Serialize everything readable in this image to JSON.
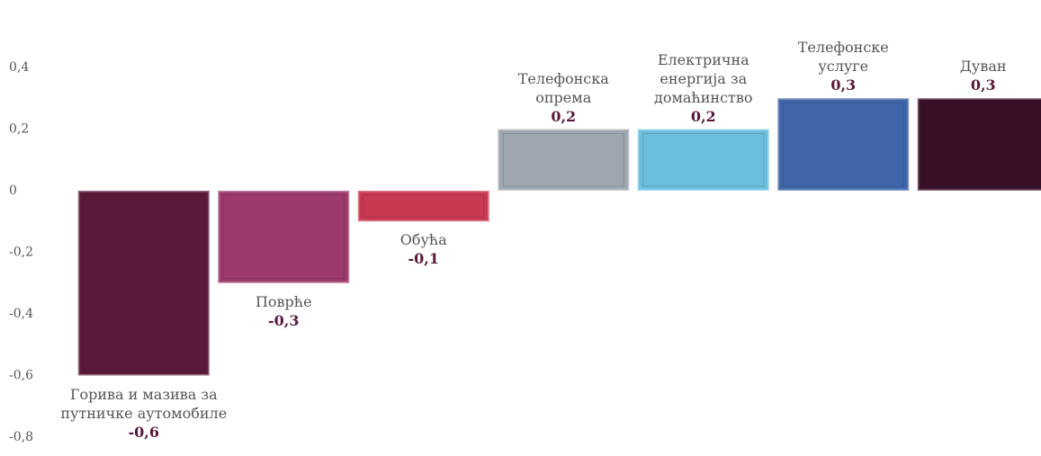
{
  "chart_data": {
    "type": "bar",
    "categories": [
      "Горива и мазива за путничке аутомобиле",
      "Поврће",
      "Обућа",
      "Телефонска опрема",
      "Електрична енергија за домаћинство",
      "Телефонске услуге",
      "Дуван"
    ],
    "values": [
      -0.6,
      -0.3,
      -0.1,
      0.2,
      0.2,
      0.3,
      0.3
    ],
    "value_labels": [
      "-0,6",
      "-0,3",
      "-0,1",
      "0,2",
      "0,2",
      "0,3",
      "0,3"
    ],
    "colors": [
      "#5b1a3b",
      "#9c3a6c",
      "#c93a52",
      "#9ea7af",
      "#6bbfdc",
      "#4065a8",
      "#3a1029"
    ],
    "ylim": [
      -0.8,
      0.4
    ],
    "yticks": [
      {
        "value": -0.8,
        "label": "-0,8"
      },
      {
        "value": -0.6,
        "label": "-0,6"
      },
      {
        "value": -0.4,
        "label": "-0,4"
      },
      {
        "value": -0.2,
        "label": "-0,2"
      },
      0,
      {
        "value": 0.2,
        "label": "0,2"
      },
      {
        "value": 0.4,
        "label": "0,4"
      }
    ],
    "grid": false
  }
}
